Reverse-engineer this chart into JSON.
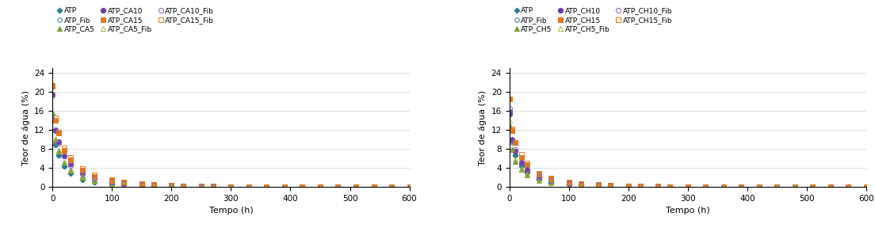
{
  "xlabel": "Tempo (h)",
  "ylabel": "Teor de água (%)",
  "xlim": [
    0,
    600
  ],
  "ylim": [
    0,
    25
  ],
  "yticks": [
    0,
    4,
    8,
    12,
    16,
    20,
    24
  ],
  "xticks": [
    0,
    100,
    200,
    300,
    400,
    500,
    600
  ],
  "series_left": [
    {
      "name": "ATP",
      "color": "#2B7B8C",
      "marker": "D",
      "filled": true,
      "size": 3.5,
      "y0": 15.2,
      "k": 0.2,
      "alpha": 0.62
    },
    {
      "name": "ATP_Fib",
      "color": "#2B7B8C",
      "marker": "o",
      "filled": false,
      "size": 4.0,
      "y0": 15.0,
      "k": 0.19,
      "alpha": 0.62
    },
    {
      "name": "ATP_CA5",
      "color": "#7B9E3A",
      "marker": "^",
      "filled": true,
      "size": 4.0,
      "y0": 16.0,
      "k": 0.18,
      "alpha": 0.62
    },
    {
      "name": "ATP_CA10",
      "color": "#6B3FA0",
      "marker": "o",
      "filled": true,
      "size": 4.5,
      "y0": 19.5,
      "k": 0.17,
      "alpha": 0.62
    },
    {
      "name": "ATP_CA15",
      "color": "#E07820",
      "marker": "s",
      "filled": true,
      "size": 4.0,
      "y0": 21.5,
      "k": 0.16,
      "alpha": 0.62
    },
    {
      "name": "ATP_CA5_Fib",
      "color": "#A0B840",
      "marker": "^",
      "filled": false,
      "size": 4.0,
      "y0": 16.5,
      "k": 0.18,
      "alpha": 0.62
    },
    {
      "name": "ATP_CA10_Fib",
      "color": "#9060C0",
      "marker": "o",
      "filled": false,
      "size": 4.5,
      "y0": 19.0,
      "k": 0.17,
      "alpha": 0.62
    },
    {
      "name": "ATP_CA15_Fib",
      "color": "#E07820",
      "marker": "s",
      "filled": false,
      "size": 4.0,
      "y0": 22.0,
      "k": 0.155,
      "alpha": 0.62
    }
  ],
  "series_right": [
    {
      "name": "ATP",
      "color": "#2B7B8C",
      "marker": "D",
      "filled": true,
      "size": 3.5,
      "y0": 15.2,
      "k": 0.2,
      "alpha": 0.62
    },
    {
      "name": "ATP_Fib",
      "color": "#2B7B8C",
      "marker": "o",
      "filled": false,
      "size": 4.0,
      "y0": 15.5,
      "k": 0.19,
      "alpha": 0.62
    },
    {
      "name": "ATP_CH5",
      "color": "#7B9E3A",
      "marker": "^",
      "filled": true,
      "size": 4.0,
      "y0": 13.5,
      "k": 0.2,
      "alpha": 0.62
    },
    {
      "name": "ATP_CH10",
      "color": "#6B3FA0",
      "marker": "o",
      "filled": true,
      "size": 4.5,
      "y0": 16.0,
      "k": 0.18,
      "alpha": 0.62
    },
    {
      "name": "ATP_CH15",
      "color": "#E07820",
      "marker": "s",
      "filled": true,
      "size": 4.0,
      "y0": 18.5,
      "k": 0.17,
      "alpha": 0.62
    },
    {
      "name": "ATP_CH5_Fib",
      "color": "#A0B840",
      "marker": "^",
      "filled": false,
      "size": 4.0,
      "y0": 14.0,
      "k": 0.2,
      "alpha": 0.62
    },
    {
      "name": "ATP_CH10_Fib",
      "color": "#9060C0",
      "marker": "o",
      "filled": false,
      "size": 4.5,
      "y0": 16.5,
      "k": 0.18,
      "alpha": 0.62
    },
    {
      "name": "ATP_CH15_Fib",
      "color": "#E07820",
      "marker": "s",
      "filled": false,
      "size": 4.0,
      "y0": 19.0,
      "k": 0.165,
      "alpha": 0.62
    }
  ],
  "legend_left": [
    [
      "ATP",
      "ATP_Fib",
      "ATP_CA5"
    ],
    [
      "ATP_CA10",
      "ATP_CA15",
      "ATP_CA5_Fib"
    ],
    [
      "ATP_CA10_Fib",
      "ATP_CA15_Fib",
      ""
    ]
  ],
  "legend_right": [
    [
      "ATP",
      "ATP_Fib",
      "ATP_CH5"
    ],
    [
      "ATP_CH10",
      "ATP_CH15",
      "ATP_CH5_Fib"
    ],
    [
      "ATP_CH10_Fib",
      "ATP_CH15_Fib",
      ""
    ]
  ]
}
